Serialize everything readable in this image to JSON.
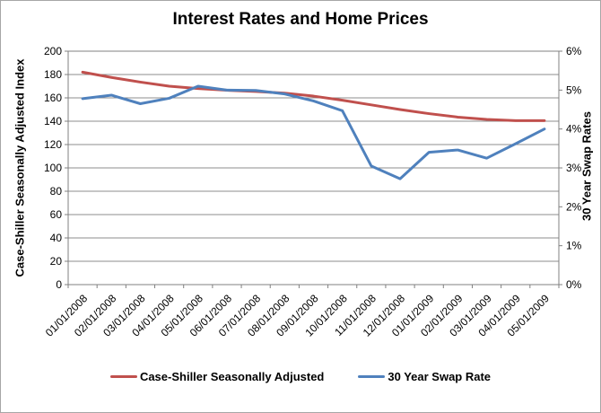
{
  "chart_data": {
    "type": "line",
    "title": "Interest Rates and Home Prices",
    "categories": [
      "01/01/2008",
      "02/01/2008",
      "03/01/2008",
      "04/01/2008",
      "05/01/2008",
      "06/01/2008",
      "07/01/2008",
      "08/01/2008",
      "09/01/2008",
      "10/01/2008",
      "11/01/2008",
      "12/01/2008",
      "01/01/2009",
      "02/01/2009",
      "03/01/2009",
      "04/01/2009",
      "05/01/2009"
    ],
    "series": [
      {
        "name": "Case-Shiller Seasonally Adjusted",
        "axis": "left",
        "color": "#C0504D",
        "values": [
          182,
          177.5,
          173.5,
          170,
          168,
          166.5,
          165.5,
          164,
          161.5,
          158,
          154,
          150,
          146.5,
          143.5,
          141.5,
          140.5,
          140.5
        ]
      },
      {
        "name": "30 Year Swap Rate",
        "axis": "right",
        "color": "#4F81BD",
        "values": [
          4.78,
          4.87,
          4.65,
          4.79,
          5.1,
          5.0,
          4.99,
          4.9,
          4.72,
          4.47,
          3.05,
          2.72,
          3.4,
          3.46,
          3.25,
          3.62,
          4.0
        ]
      }
    ],
    "axes": {
      "left": {
        "label": "Case-Shiller Seasonally Adjusted Index",
        "min": 0,
        "max": 200,
        "step": 20,
        "tick_labels": [
          "0",
          "20",
          "40",
          "60",
          "80",
          "100",
          "120",
          "140",
          "160",
          "180",
          "200"
        ]
      },
      "right": {
        "label": "30 Year Swap Rates",
        "min": 0,
        "max": 6,
        "step": 1,
        "tick_labels": [
          "0%",
          "1%",
          "2%",
          "3%",
          "4%",
          "5%",
          "6%"
        ]
      }
    },
    "grid": "horizontal",
    "legend_position": "bottom",
    "colors": {
      "background": "#FFFFFF",
      "plot_border": "#808080",
      "gridline": "#8C8C8C",
      "tick": "#808080",
      "text": "#000000"
    }
  }
}
